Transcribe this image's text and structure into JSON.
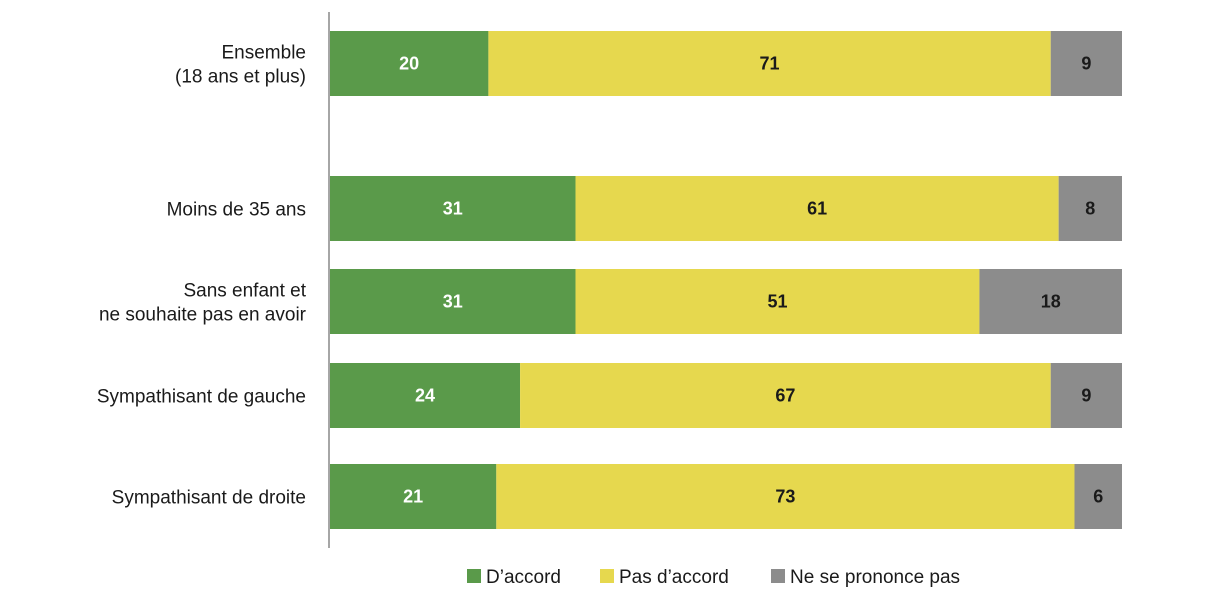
{
  "chart_data": {
    "type": "bar",
    "orientation": "horizontal",
    "stacked": true,
    "categories": [
      [
        "Ensemble",
        "(18 ans et plus)"
      ],
      [
        "Moins de 35 ans"
      ],
      [
        "Sans enfant et",
        "ne souhaite pas en avoir"
      ],
      [
        "Sympathisant de gauche"
      ],
      [
        "Sympathisant de droite"
      ]
    ],
    "series": [
      {
        "name": "D’accord",
        "color": "#5a9a4a",
        "label_color": "#ffffff",
        "values": [
          20,
          31,
          31,
          24,
          21
        ]
      },
      {
        "name": "Pas d’accord",
        "color": "#e6d84e",
        "label_color": "#1a1a1a",
        "values": [
          71,
          61,
          51,
          67,
          73
        ]
      },
      {
        "name": "Ne se prononce pas",
        "color": "#8c8c8c",
        "label_color": "#1a1a1a",
        "values": [
          9,
          8,
          18,
          9,
          6
        ]
      }
    ],
    "xlim": [
      0,
      100
    ],
    "grid": false,
    "legend_position": "bottom-center"
  }
}
